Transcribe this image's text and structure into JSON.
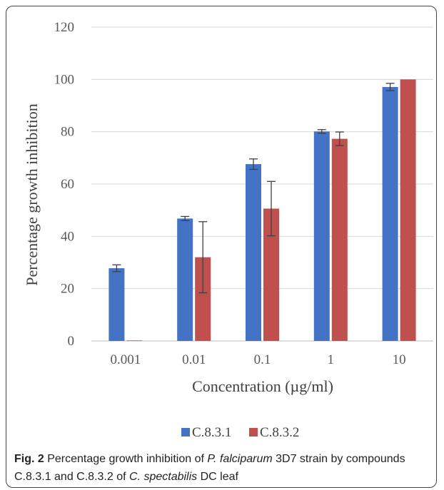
{
  "chart_data": {
    "type": "bar",
    "categories": [
      "0.001",
      "0.01",
      "0.1",
      "1",
      "10"
    ],
    "series": [
      {
        "name": "C.8.3.1",
        "color": "#4472C4",
        "values": [
          27.8,
          46.8,
          67.6,
          80.1,
          97.1
        ],
        "errors": [
          1.3,
          0.8,
          2.0,
          0.7,
          1.4
        ]
      },
      {
        "name": "C.8.3.2",
        "color": "#C0504D",
        "values": [
          0.2,
          32.0,
          50.6,
          77.3,
          100.0
        ],
        "errors": [
          0,
          13.6,
          10.4,
          2.6,
          0
        ]
      }
    ],
    "xlabel": "Concentration (µg/ml)",
    "ylabel": "Percentage growth inhibition",
    "ylim": [
      0,
      120
    ],
    "yticks": [
      0,
      20,
      40,
      60,
      80,
      100,
      120
    ],
    "grid": true,
    "legend_position": "bottom"
  },
  "caption": {
    "figure_label": "Fig. 2",
    "text_1": " Percentage growth inhibition of ",
    "italic_1": "P. falciparum",
    "text_2": " 3D7 strain by compounds C.8.3.1 and C.8.3.2 of ",
    "italic_2": "C. spectabilis",
    "text_3": " DC leaf"
  }
}
